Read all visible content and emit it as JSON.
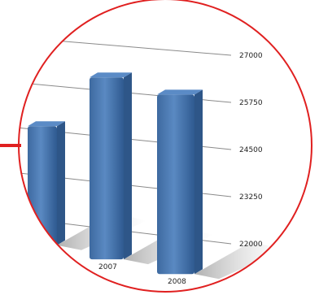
{
  "colors": {
    "circle_stroke": "#e02020",
    "arrow": "#e02020",
    "bar_front": "#4a78b0",
    "bar_side": "#2e5688",
    "bar_top": "#5b8bc6",
    "grid": "#8a8a8a"
  },
  "chart_data": {
    "type": "bar",
    "style": "3d-perspective",
    "title": "",
    "xlabel": "",
    "ylabel": "",
    "categories": [
      "",
      "2007",
      "2008"
    ],
    "values": [
      24700,
      26200,
      25900
    ],
    "ylim": [
      22000,
      27000
    ],
    "yticks": [
      "27000",
      "25750",
      "24500",
      "23250",
      "22000"
    ],
    "grid": true,
    "legend": "none"
  }
}
